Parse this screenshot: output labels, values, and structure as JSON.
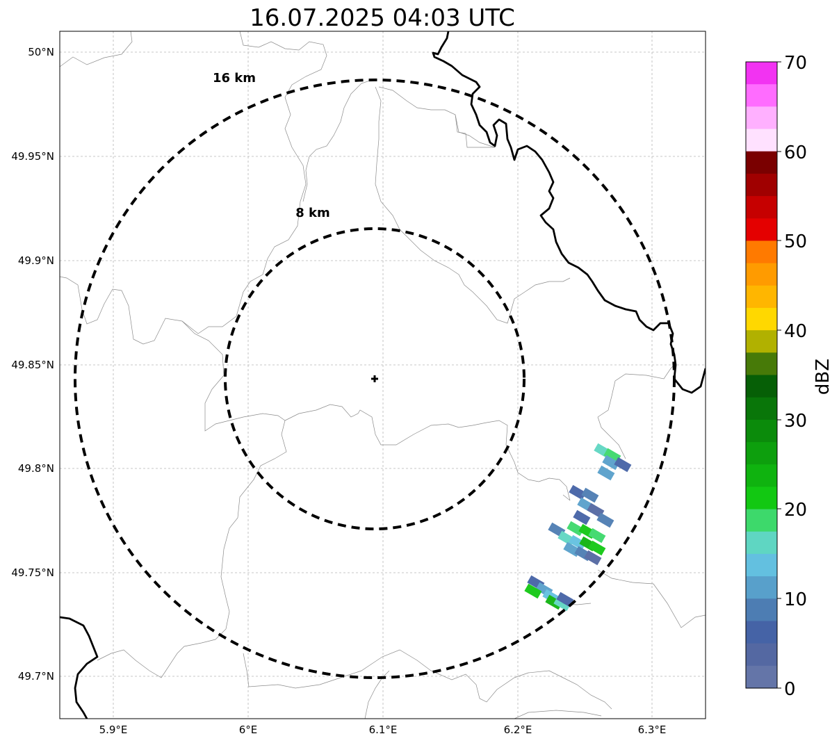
{
  "title": "16.07.2025 04:03 UTC",
  "map": {
    "lon_ticks": [
      "5.9°E",
      "6°E",
      "6.1°E",
      "6.2°E",
      "6.3°E"
    ],
    "lat_ticks": [
      "50°N",
      "49.95°N",
      "49.9°N",
      "49.85°N",
      "49.8°N",
      "49.75°N",
      "49.7°N"
    ],
    "ring_labels": [
      "16 km",
      "8 km"
    ],
    "radar_site": "radar-center-marker"
  },
  "colorbar": {
    "label": "dBZ",
    "ticks": [
      "70",
      "60",
      "50",
      "40",
      "30",
      "20",
      "10",
      "0"
    ],
    "colors": [
      "#f233f2",
      "#ff6cff",
      "#ffb0ff",
      "#ffe1ff",
      "#7a0000",
      "#a00000",
      "#c60000",
      "#e40000",
      "#ff7a00",
      "#ff9b00",
      "#ffb600",
      "#ffd800",
      "#b1b100",
      "#477a08",
      "#065f06",
      "#097609",
      "#0b8b0b",
      "#0d9f0d",
      "#0fb30f",
      "#12c812",
      "#3dd96b",
      "#5fd6c2",
      "#63c0e0",
      "#58a0cb",
      "#4d7db3",
      "#4563a6",
      "#5468a2",
      "#6475a8"
    ]
  }
}
